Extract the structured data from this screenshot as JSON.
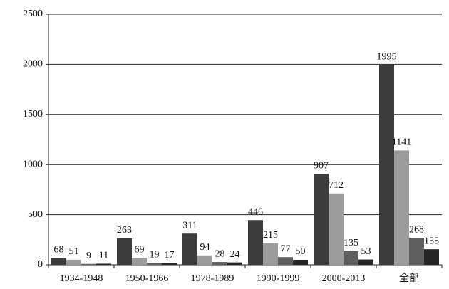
{
  "chart_data": {
    "type": "bar",
    "categories": [
      "1934-1948",
      "1950-1966",
      "1978-1989",
      "1990-1999",
      "2000-2013",
      "全部"
    ],
    "series": [
      {
        "color": "#3c3c3c",
        "values": [
          68,
          263,
          311,
          446,
          907,
          1995
        ]
      },
      {
        "color": "#9c9c9c",
        "values": [
          51,
          69,
          94,
          215,
          712,
          1141
        ]
      },
      {
        "color": "#5e5e5e",
        "values": [
          9,
          19,
          28,
          77,
          135,
          268
        ]
      },
      {
        "color": "#262626",
        "values": [
          11,
          17,
          24,
          50,
          53,
          155
        ]
      }
    ],
    "ylim": [
      0,
      2500
    ],
    "yticks": [
      0,
      500,
      1000,
      1500,
      2000,
      2500
    ],
    "grid": true
  }
}
